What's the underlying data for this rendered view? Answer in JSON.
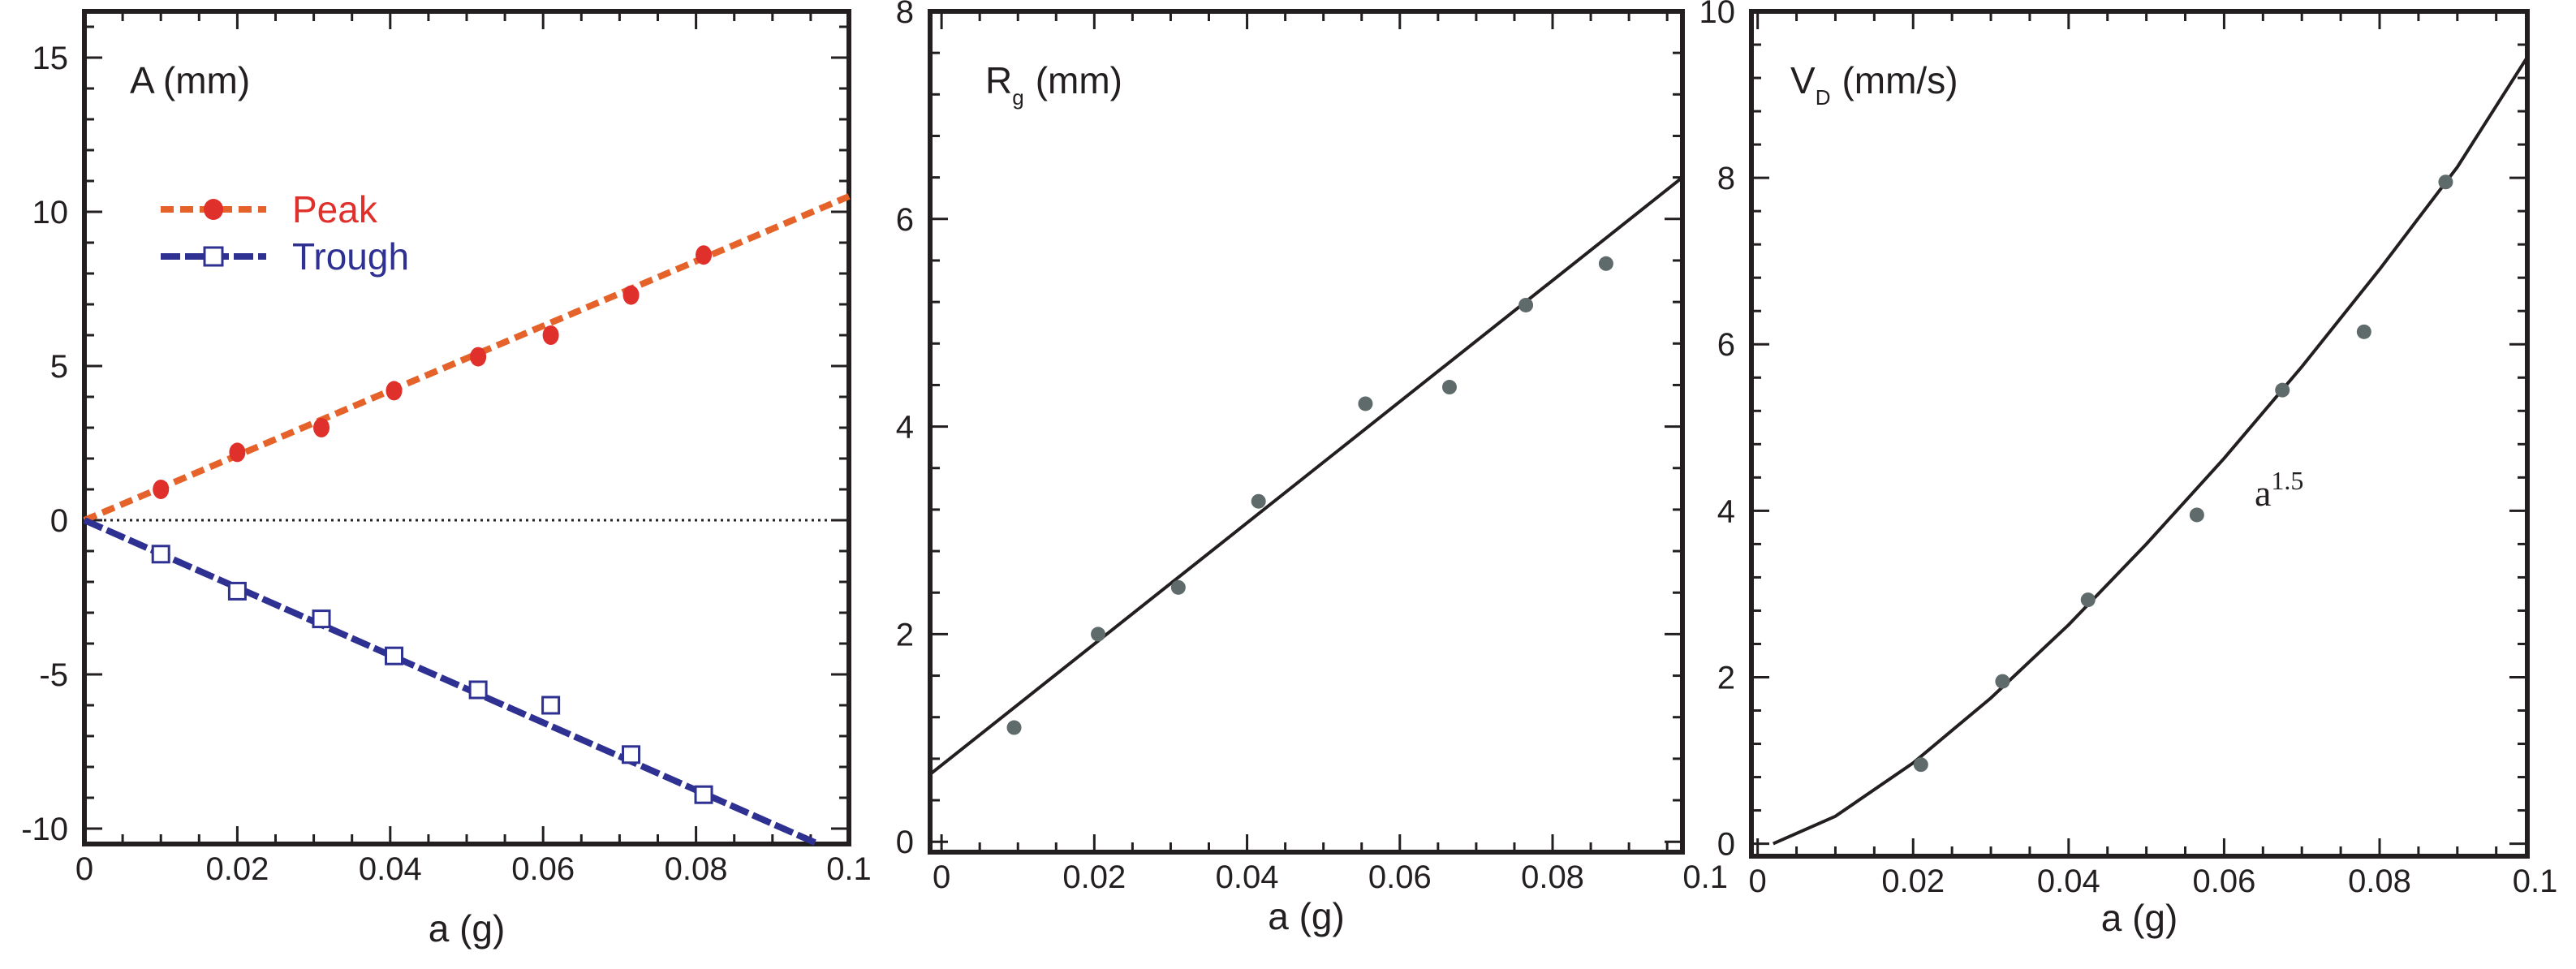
{
  "chart_data": [
    {
      "type": "scatter",
      "title": "A (mm)",
      "xlabel": "a (g)",
      "ylabel": "A (mm)",
      "xlim": [
        0,
        0.1
      ],
      "ylim": [
        -10.5,
        16.5
      ],
      "xticks": [
        0,
        0.02,
        0.04,
        0.06,
        0.08,
        0.1
      ],
      "xtick_labels": [
        "0",
        "0.02",
        "0.04",
        "0.06",
        "0.08",
        "0.1"
      ],
      "yticks": [
        -10,
        -5,
        0,
        5,
        10,
        15
      ],
      "ytick_labels": [
        "-10",
        "-5",
        "0",
        "5",
        "10",
        "15"
      ],
      "zero_line": true,
      "legend": [
        "Peak",
        "Trough"
      ],
      "series": [
        {
          "name": "Peak",
          "color": "#e0302b",
          "line_color": "#e5632a",
          "marker": "filled-circle",
          "x": [
            0.01,
            0.02,
            0.031,
            0.0405,
            0.0515,
            0.061,
            0.0715,
            0.081
          ],
          "y": [
            1.0,
            2.2,
            3.0,
            4.2,
            5.3,
            6.0,
            7.3,
            8.6
          ],
          "fit_x": [
            0,
            0.1
          ],
          "fit_y": [
            0,
            10.5
          ]
        },
        {
          "name": "Trough",
          "color": "#2e3192",
          "line_color": "#2e3192",
          "marker": "open-square",
          "x": [
            0.01,
            0.02,
            0.031,
            0.0405,
            0.0515,
            0.061,
            0.0715,
            0.081
          ],
          "y": [
            -1.1,
            -2.3,
            -3.2,
            -4.4,
            -5.5,
            -6.0,
            -7.6,
            -8.9
          ],
          "fit_x": [
            0,
            0.096
          ],
          "fit_y": [
            0,
            -10.5
          ]
        }
      ]
    },
    {
      "type": "scatter",
      "title": "R",
      "title_sub": "g",
      "title_unit": "(mm)",
      "xlabel": "a (g)",
      "ylabel": "R_g (mm)",
      "xlim": [
        -0.0015,
        0.097
      ],
      "ylim": [
        -0.1,
        8
      ],
      "xticks": [
        0,
        0.02,
        0.04,
        0.06,
        0.08,
        0.1
      ],
      "xtick_labels": [
        "0",
        "0.02",
        "0.04",
        "0.06",
        "0.08",
        "0.1"
      ],
      "yticks": [
        0,
        2,
        4,
        6,
        8
      ],
      "ytick_labels": [
        "0",
        "2",
        "4",
        "6",
        "8"
      ],
      "series": [
        {
          "name": "data",
          "color": "#5f6b6b",
          "marker": "filled-circle",
          "x": [
            0.0095,
            0.0205,
            0.031,
            0.0415,
            0.0555,
            0.0665,
            0.0765,
            0.087
          ],
          "y": [
            1.1,
            2.0,
            2.45,
            3.28,
            4.22,
            4.38,
            5.17,
            5.57
          ],
          "fit_x": [
            -0.0015,
            0.097
          ],
          "fit_y": [
            0.65,
            6.4
          ]
        }
      ]
    },
    {
      "type": "scatter",
      "title": "V",
      "title_sub": "D",
      "title_unit": "(mm/s)",
      "xlabel": "a (g)",
      "ylabel": "V_D (mm/s)",
      "xlim": [
        -0.0008,
        0.099
      ],
      "ylim": [
        -0.15,
        10
      ],
      "xticks": [
        0,
        0.02,
        0.04,
        0.06,
        0.08,
        0.1
      ],
      "xtick_labels": [
        "0",
        "0.02",
        "0.04",
        "0.06",
        "0.08",
        "0.1"
      ],
      "yticks": [
        0,
        2,
        4,
        6,
        8,
        10
      ],
      "ytick_labels": [
        "0",
        "2",
        "4",
        "6",
        "8",
        "10"
      ],
      "annotation": {
        "base": "a",
        "exponent": "1.5"
      },
      "series": [
        {
          "name": "data",
          "color": "#5f6b6b",
          "marker": "filled-circle",
          "x": [
            0.021,
            0.0315,
            0.0425,
            0.0565,
            0.0675,
            0.078,
            0.0885
          ],
          "y": [
            0.95,
            1.95,
            2.93,
            3.95,
            5.45,
            6.15,
            7.95
          ],
          "fit_x": [
            0.002,
            0.01,
            0.02,
            0.03,
            0.04,
            0.05,
            0.06,
            0.07,
            0.08,
            0.09,
            0.099
          ],
          "fit_y": [
            0.0,
            0.33,
            0.97,
            1.75,
            2.63,
            3.6,
            4.63,
            5.73,
            6.9,
            8.13,
            9.45
          ]
        }
      ]
    }
  ]
}
